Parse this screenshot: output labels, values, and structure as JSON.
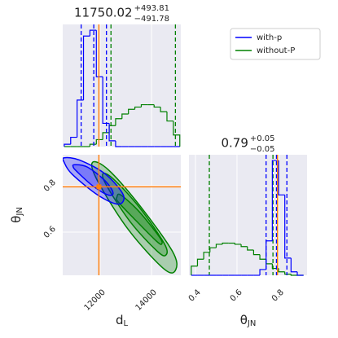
{
  "chart_data": {
    "type": "corner",
    "legend": {
      "position": "upper right"
    },
    "truth_color": "#ff7f0e",
    "grid": true,
    "parameters": [
      {
        "symbol": "d",
        "subscript": "L",
        "lim": [
          10540,
          15140
        ],
        "ticks": [
          12000,
          14000
        ],
        "truth": 11950,
        "title": {
          "median": "11750.02",
          "plus": "+493.81",
          "minus": "−491.78"
        },
        "bins": [
          10600,
          10850,
          11100,
          11350,
          11600,
          11850,
          12100,
          12350,
          12600,
          12850,
          13100,
          13350,
          13600,
          13850,
          14100,
          14350,
          14600,
          14850,
          15100
        ],
        "hist_ylim": [
          0,
          105
        ]
      },
      {
        "symbol": "θ",
        "subscript": "JN",
        "lim": [
          0.369,
          0.937
        ],
        "ticks": [
          0.4,
          0.6,
          0.8
        ],
        "ylim": [
          0.414,
          0.933
        ],
        "yticks": [
          0.6,
          0.8
        ],
        "truth": 0.795,
        "title": {
          "median": "0.79",
          "plus": "+0.05",
          "minus": "−0.05"
        },
        "bins": [
          0.38,
          0.41,
          0.44,
          0.47,
          0.5,
          0.53,
          0.56,
          0.59,
          0.62,
          0.65,
          0.68,
          0.71,
          0.74,
          0.77,
          0.8,
          0.83,
          0.86,
          0.89,
          0.92
        ],
        "hist_ylim": [
          0,
          105
        ]
      }
    ],
    "series": [
      {
        "name": "with-p",
        "color": "#0000ff",
        "hists": [
          [
            2,
            8,
            40,
            95,
            100,
            60,
            20,
            5,
            0,
            0,
            0,
            0,
            0,
            0,
            0,
            0,
            0,
            0
          ],
          [
            0,
            0,
            0,
            0,
            0,
            0,
            0,
            0,
            0,
            0,
            0,
            5,
            30,
            100,
            70,
            15,
            3,
            0
          ]
        ],
        "quantiles": [
          [
            11258.24,
            11750.02,
            12243.83
          ],
          [
            0.74,
            0.79,
            0.84
          ]
        ],
        "contours": [
          {
            "x": [
              10600,
              11200,
              12200,
              12900,
              12700,
              11900,
              10900,
              10600
            ],
            "y": [
              0.92,
              0.91,
              0.85,
              0.76,
              0.72,
              0.76,
              0.85,
              0.9
            ]
          },
          {
            "x": [
              11000,
              11500,
              12200,
              12500,
              12300,
              11700,
              11100,
              10950
            ],
            "y": [
              0.89,
              0.88,
              0.82,
              0.77,
              0.76,
              0.8,
              0.86,
              0.88
            ]
          }
        ]
      },
      {
        "name": "without-P",
        "color": "#008000",
        "hists": [
          [
            0,
            0,
            0,
            0,
            2,
            6,
            12,
            18,
            24,
            28,
            32,
            34,
            36,
            36,
            34,
            30,
            22,
            10
          ],
          [
            8,
            14,
            20,
            24,
            27,
            28,
            28,
            27,
            25,
            22,
            18,
            14,
            10,
            6,
            3,
            1,
            0,
            0
          ]
        ],
        "quantiles": [
          [
            12420,
            14930
          ],
          [
            0.467,
            0.773
          ]
        ],
        "contours": [
          {
            "x": [
              11700,
              12300,
              13500,
              14800,
              14950,
              14500,
              13100,
              11900
            ],
            "y": [
              0.9,
              0.87,
              0.72,
              0.52,
              0.44,
              0.44,
              0.61,
              0.82
            ]
          },
          {
            "x": [
              12100,
              12500,
              13500,
              14500,
              14550,
              14200,
              13200,
              12300
            ],
            "y": [
              0.85,
              0.83,
              0.71,
              0.55,
              0.5,
              0.52,
              0.64,
              0.79
            ]
          },
          {
            "x": [
              12650,
              12800,
              13500,
              14300,
              14400,
              14200,
              13300,
              12700
            ],
            "y": [
              0.75,
              0.76,
              0.69,
              0.58,
              0.55,
              0.56,
              0.66,
              0.73
            ]
          }
        ]
      }
    ]
  }
}
